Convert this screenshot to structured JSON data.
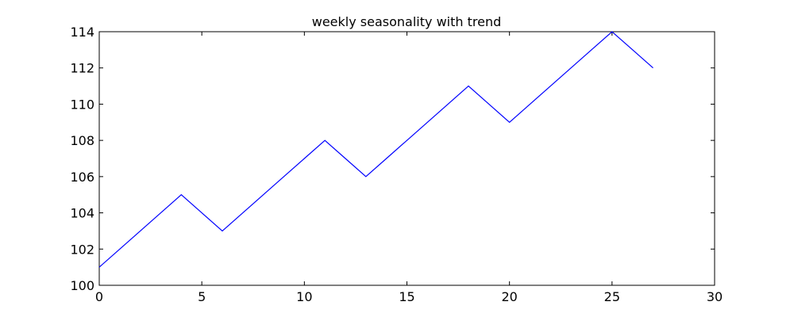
{
  "chart_data": {
    "type": "line",
    "title": "weekly seasonality with trend",
    "xlabel": "",
    "ylabel": "",
    "xlim": [
      0,
      30
    ],
    "ylim": [
      100,
      114
    ],
    "xticks": [
      0,
      5,
      10,
      15,
      20,
      25,
      30
    ],
    "yticks": [
      100,
      102,
      104,
      106,
      108,
      110,
      112,
      114
    ],
    "grid": false,
    "legend": "none",
    "series": [
      {
        "color": "#0000ff",
        "x": [
          0,
          1,
          2,
          3,
          4,
          5,
          6,
          7,
          8,
          9,
          10,
          11,
          12,
          13,
          14,
          15,
          16,
          17,
          18,
          19,
          20,
          21,
          22,
          23,
          24,
          25,
          26,
          27
        ],
        "y": [
          101,
          102,
          103,
          104,
          105,
          104,
          103,
          104,
          105,
          106,
          107,
          108,
          107,
          106,
          107,
          108,
          109,
          110,
          111,
          110,
          109,
          110,
          111,
          112,
          113,
          114,
          113,
          112
        ]
      }
    ]
  }
}
